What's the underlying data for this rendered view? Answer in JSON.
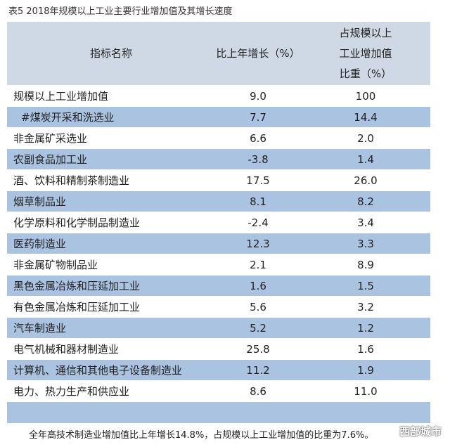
{
  "caption": "表5 2018年规模以上工业主要行业增加值及其增长速度",
  "headers": {
    "name": "指标名称",
    "growth": "比上年增长（%）",
    "share_line1": "占规模以上",
    "share_line2": "工业增加值",
    "share_line3": "比重（%）"
  },
  "rows": [
    {
      "name": "规模以上工业增加值",
      "growth": "9.0",
      "share": "100"
    },
    {
      "name": "#煤炭开采和洗选业",
      "growth": "7.7",
      "share": "14.4"
    },
    {
      "name": "非金属矿采选业",
      "growth": "6.6",
      "share": "2.0"
    },
    {
      "name": "农副食品加工业",
      "growth": "-3.8",
      "share": "1.4"
    },
    {
      "name": "酒、饮料和精制茶制造业",
      "growth": "17.5",
      "share": "26.0"
    },
    {
      "name": "烟草制品业",
      "growth": "8.1",
      "share": "8.2"
    },
    {
      "name": "化学原料和化学制品制造业",
      "growth": "-2.4",
      "share": "3.4"
    },
    {
      "name": "医药制造业",
      "growth": "12.3",
      "share": "3.3"
    },
    {
      "name": "非金属矿物制品业",
      "growth": "2.1",
      "share": "8.9"
    },
    {
      "name": "黑色金属冶炼和压延加工业",
      "growth": "1.6",
      "share": "1.5"
    },
    {
      "name": "有色金属冶炼和压延加工业",
      "growth": "5.6",
      "share": "3.2"
    },
    {
      "name": "汽车制造业",
      "growth": "5.2",
      "share": "1.2"
    },
    {
      "name": "电气机械和器材制造业",
      "growth": "25.8",
      "share": "1.6"
    },
    {
      "name": "计算机、通信和其他电子设备制造业",
      "growth": "11.2",
      "share": "1.9"
    },
    {
      "name": "电力、热力生产和供应业",
      "growth": "8.6",
      "share": "11.0"
    }
  ],
  "note": "全年高技术制造业增加值比上年增长14.8%，占规模以上工业增加值的比重为7.6%。",
  "watermark": "西部城市",
  "colors": {
    "header": "#cfd9e6",
    "stripe": "#a9c3e0",
    "plain": "#ffffff"
  }
}
